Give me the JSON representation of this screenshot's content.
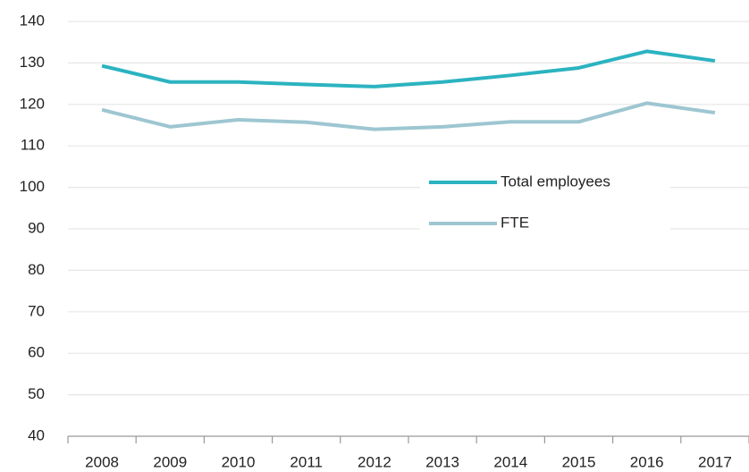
{
  "chart_data": {
    "type": "line",
    "categories": [
      "2008",
      "2009",
      "2010",
      "2011",
      "2012",
      "2013",
      "2014",
      "2015",
      "2016",
      "2017"
    ],
    "series": [
      {
        "name": "Total employees",
        "color": "#2bb3c0",
        "values": [
          129.3,
          125.4,
          125.4,
          124.8,
          124.3,
          125.4,
          127.0,
          128.8,
          132.8,
          130.5
        ]
      },
      {
        "name": "FTE",
        "color": "#9dc6d1",
        "values": [
          118.7,
          114.6,
          116.3,
          115.7,
          114.0,
          114.6,
          115.8,
          115.8,
          120.3,
          118.0
        ]
      }
    ],
    "ylim": [
      40,
      140
    ],
    "yticks": [
      40,
      50,
      60,
      70,
      80,
      90,
      100,
      110,
      120,
      130,
      140
    ],
    "grid": true,
    "legend": "right"
  }
}
